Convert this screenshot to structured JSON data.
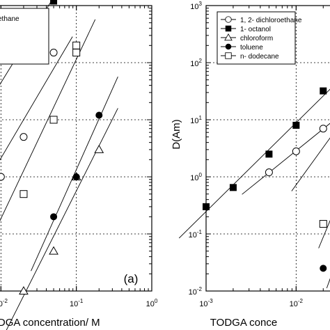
{
  "chart_data": [
    {
      "type": "scatter",
      "panel_label": "(a)",
      "xscale": "log",
      "yscale": "log",
      "grid": true,
      "xlim_exp": [
        -2.4,
        0
      ],
      "ylim_exp": [
        -2,
        3
      ],
      "xtick_labels": [
        "10-2",
        "10-1",
        "100"
      ],
      "xlabel": "TODGA concentration/ M",
      "legend_fragments": [
        "ethane",
        "l"
      ],
      "legend_placement": "top-left",
      "series": [
        {
          "marker": "filled-square",
          "x": [
            0.005,
            0.02,
            0.05,
            0.05
          ],
          "y": [
            10,
            200,
            1600,
            1200
          ]
        },
        {
          "marker": "open-circle",
          "x": [
            0.005,
            0.01,
            0.02,
            0.05
          ],
          "y": [
            1,
            1,
            5,
            150
          ]
        },
        {
          "marker": "open-triangle",
          "x": [
            0.02,
            0.05,
            0.1,
            0.2
          ],
          "y": [
            0.01,
            0.05,
            1,
            3
          ]
        },
        {
          "marker": "filled-circle",
          "x": [
            0.05,
            0.1,
            0.2
          ],
          "y": [
            0.2,
            1,
            12
          ]
        },
        {
          "marker": "open-square",
          "x": [
            0.005,
            0.02,
            0.05,
            0.1,
            0.1
          ],
          "y": [
            0.05,
            0.5,
            10,
            200,
            150
          ]
        }
      ]
    },
    {
      "type": "scatter",
      "xscale": "log",
      "yscale": "log",
      "grid": true,
      "xlim_exp": [
        -3,
        -1.5
      ],
      "ylim_exp": [
        -2,
        3
      ],
      "xtick_labels": [
        "10-3",
        "10-2"
      ],
      "ytick_labels": [
        "10-2",
        "10-1",
        "100",
        "101",
        "102",
        "103"
      ],
      "xlabel": "TODGA conce",
      "ylabel": "D(Am)",
      "legend_placement": "top-left",
      "series": [
        {
          "name": "1, 2- dichloroethane",
          "marker": "open-circle",
          "x": [
            0.005,
            0.01,
            0.02
          ],
          "y": [
            1.2,
            2.8,
            7
          ]
        },
        {
          "name": "1- octanol",
          "marker": "filled-square",
          "x": [
            0.001,
            0.002,
            0.005,
            0.01,
            0.02
          ],
          "y": [
            0.3,
            0.65,
            2.5,
            8,
            32
          ]
        },
        {
          "name": "chloroform",
          "marker": "open-triangle",
          "x": [],
          "y": []
        },
        {
          "name": "toluene",
          "marker": "filled-circle",
          "x": [
            0.02
          ],
          "y": [
            0.025
          ]
        },
        {
          "name": "n- dodecane",
          "marker": "open-square",
          "x": [
            0.02
          ],
          "y": [
            0.15
          ]
        }
      ]
    }
  ]
}
